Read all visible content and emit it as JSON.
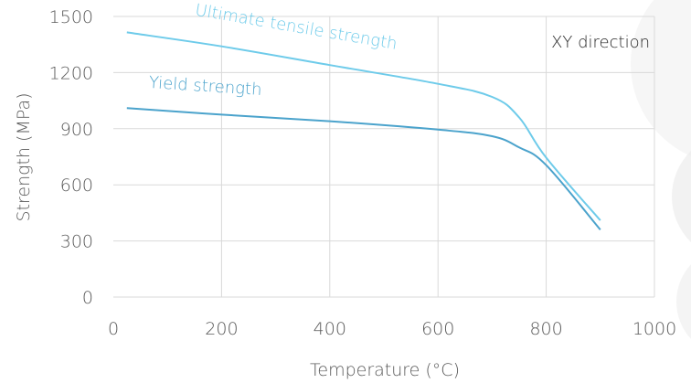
{
  "chart_data": {
    "type": "line",
    "title": "",
    "xlabel": "Temperature (°C)",
    "ylabel": "Strength (MPa)",
    "xlim": [
      0,
      1000
    ],
    "ylim": [
      0,
      1500
    ],
    "xticks": [
      0,
      200,
      400,
      600,
      800,
      1000
    ],
    "yticks": [
      0,
      300,
      600,
      900,
      1200,
      1500
    ],
    "grid": true,
    "annotation": "XY direction",
    "series": [
      {
        "name": "Ultimate tensile strength",
        "color": "#6ecbea",
        "x": [
          25,
          200,
          400,
          600,
          700,
          750,
          800,
          900
        ],
        "y": [
          1415,
          1340,
          1240,
          1140,
          1070,
          960,
          745,
          410
        ]
      },
      {
        "name": "Yield strength",
        "color": "#4ba3cc",
        "x": [
          25,
          200,
          400,
          600,
          700,
          750,
          800,
          900
        ],
        "y": [
          1010,
          975,
          940,
          895,
          860,
          800,
          705,
          360
        ]
      }
    ]
  }
}
